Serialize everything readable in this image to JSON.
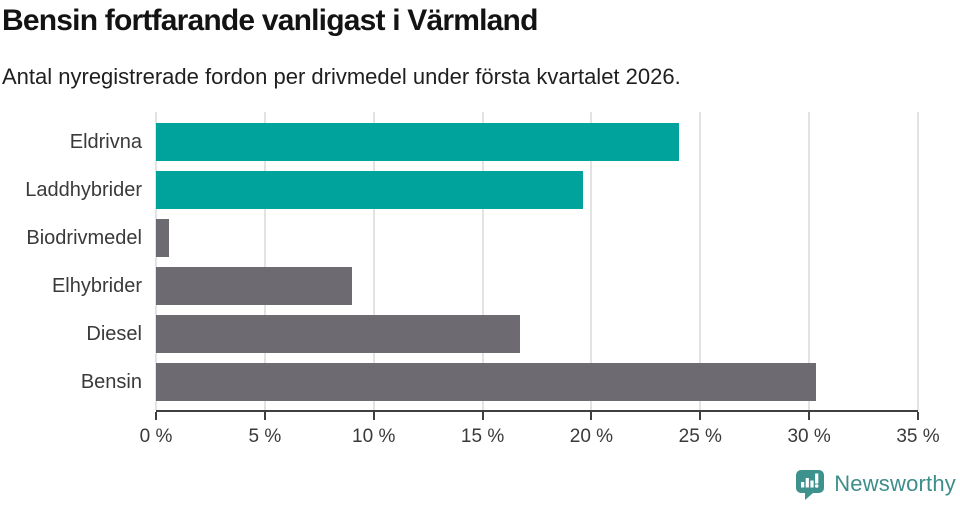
{
  "header": {
    "title": "Bensin fortfarande vanligast i Värmland",
    "subtitle": "Antal nyregistrerade fordon per drivmedel under första kvartalet 2026."
  },
  "chart_data": {
    "type": "bar",
    "orientation": "horizontal",
    "title": "Bensin fortfarande vanligast i Värmland",
    "subtitle": "Antal nyregistrerade fordon per drivmedel under första kvartalet 2026.",
    "categories": [
      "Eldrivna",
      "Laddhybrider",
      "Biodrivmedel",
      "Elhybrider",
      "Diesel",
      "Bensin"
    ],
    "values": [
      24.0,
      19.6,
      0.6,
      9.0,
      16.7,
      30.3
    ],
    "unit": "%",
    "xlabel": "",
    "ylabel": "",
    "xlim": [
      0,
      35
    ],
    "xticks": [
      0,
      5,
      10,
      15,
      20,
      25,
      30,
      35
    ],
    "xtick_labels": [
      "0 %",
      "5 %",
      "10 %",
      "15 %",
      "20 %",
      "25 %",
      "30 %",
      "35 %"
    ],
    "grid": true,
    "legend_position": "none",
    "bar_colors": [
      "#00a39b",
      "#00a39b",
      "#6e6a72",
      "#6e6a72",
      "#6e6a72",
      "#6e6a72"
    ],
    "highlight_color": "#00a39b",
    "default_color": "#6e6a72"
  },
  "colors": {
    "background": "#ffffff",
    "gridline": "#e3e3e3",
    "axis": "#3f3f3f",
    "text": "#3a3a3a"
  },
  "footer": {
    "brand": "Newsworthy",
    "brand_color": "#3d8e8a",
    "icon_color": "#3d928e",
    "logo_icon": "speech-bubble-chart-icon"
  }
}
